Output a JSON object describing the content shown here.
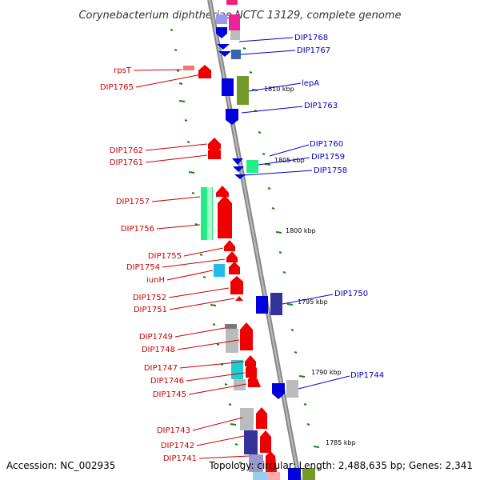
{
  "title": "Corynebacterium diphtheriae NCTC 13129, complete genome",
  "footer": {
    "accession": "Accession: NC_002935",
    "summary": "Topology: circular; Length: 2,488,635 bp; Genes: 2,341"
  },
  "colors": {
    "reverse_strand": "#ee0000",
    "forward_strand": "#0000dd",
    "label_reverse": "#cc0000",
    "label_forward": "#0000cc",
    "backbone": "#888888",
    "tick": "#1a7f1a"
  },
  "scale": [
    "1810 kbp",
    "1805 kbp",
    "1800 kbp",
    "1795 kbp",
    "1790 kbp",
    "1785 kbp"
  ],
  "labels_left": [
    "rpsT",
    "DIP1765",
    "DIP1762",
    "DIP1761",
    "DIP1757",
    "DIP1756",
    "DIP1755",
    "DIP1754",
    "iunH",
    "DIP1752",
    "DIP1751",
    "DIP1749",
    "DIP1748",
    "DIP1747",
    "DIP1746",
    "DIP1745",
    "DIP1743",
    "DIP1742",
    "DIP1741"
  ],
  "labels_right": [
    "DIP1768",
    "DIP1767",
    "lepA",
    "DIP1763",
    "DIP1760",
    "DIP1759",
    "DIP1758",
    "DIP1750",
    "DIP1744"
  ]
}
